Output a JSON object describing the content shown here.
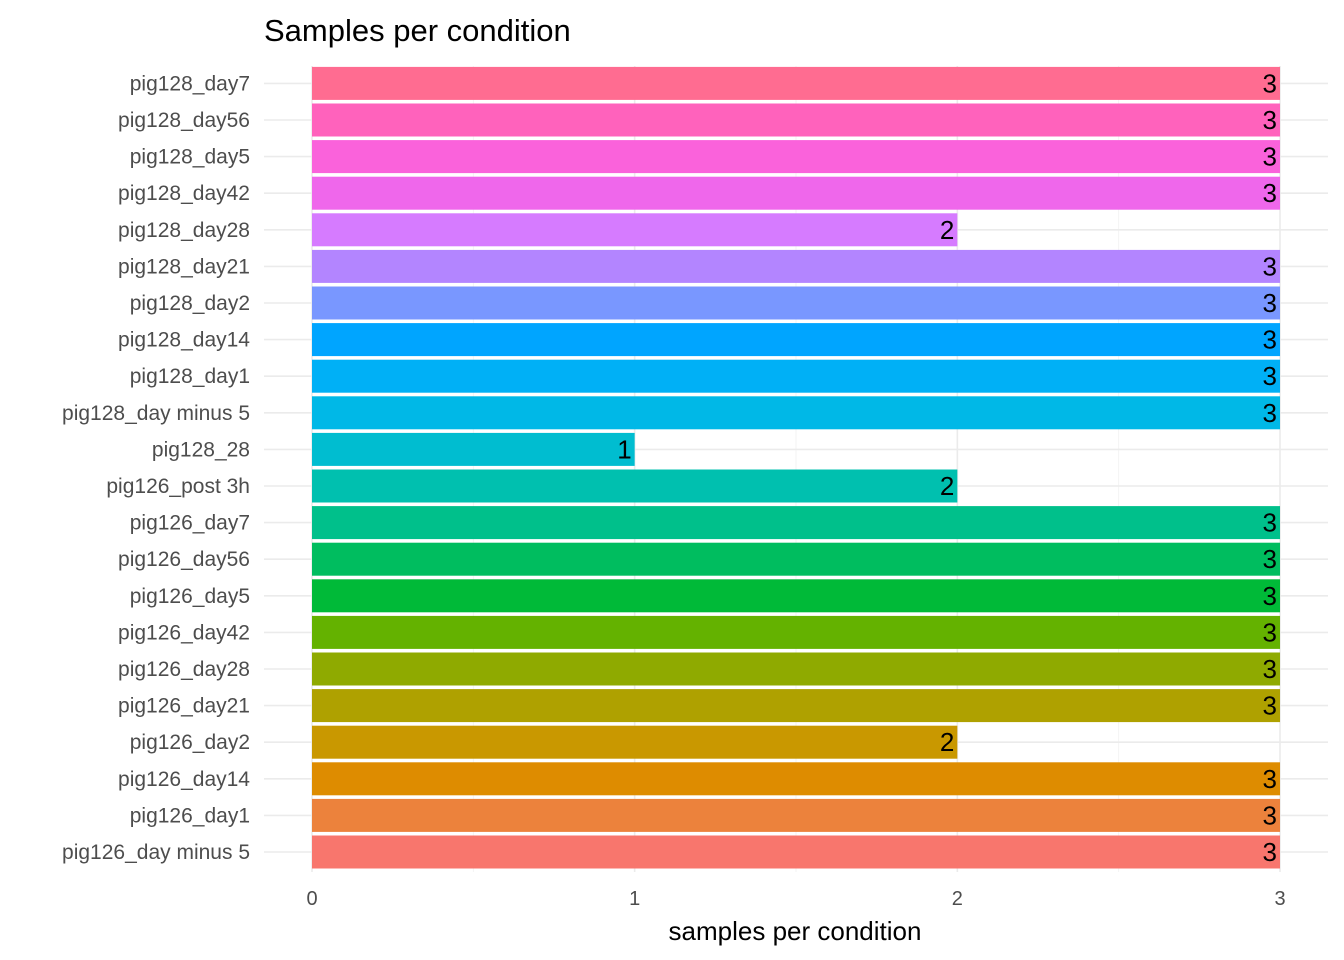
{
  "chart_data": {
    "type": "bar",
    "orientation": "horizontal",
    "title": "Samples per condition",
    "xlabel": "samples per condition",
    "ylabel": "",
    "xlim": [
      0,
      3
    ],
    "x_ticks": [
      "0",
      "1",
      "2",
      "3"
    ],
    "grid": true,
    "legend": "none",
    "categories": [
      "pig126_day minus 5",
      "pig126_day1",
      "pig126_day14",
      "pig126_day2",
      "pig126_day21",
      "pig126_day28",
      "pig126_day42",
      "pig126_day5",
      "pig126_day56",
      "pig126_day7",
      "pig126_post 3h",
      "pig128_28",
      "pig128_day minus 5",
      "pig128_day1",
      "pig128_day14",
      "pig128_day2",
      "pig128_day21",
      "pig128_day28",
      "pig128_day42",
      "pig128_day5",
      "pig128_day56",
      "pig128_day7"
    ],
    "values": [
      3,
      3,
      3,
      2,
      3,
      3,
      3,
      3,
      3,
      3,
      2,
      1,
      3,
      3,
      3,
      3,
      3,
      2,
      3,
      3,
      3,
      3
    ],
    "colors": [
      "#F8766D",
      "#EC823C",
      "#DE8C00",
      "#C99800",
      "#AFA100",
      "#8FAA00",
      "#64B200",
      "#00BA38",
      "#00BD5F",
      "#00C08B",
      "#00C0AF",
      "#00BDD0",
      "#00B8E7",
      "#00B0F6",
      "#00A5FF",
      "#7997FF",
      "#B385FF",
      "#D67BFF",
      "#EF67EB",
      "#FA62DB",
      "#FF62BC",
      "#FF6C91"
    ]
  }
}
